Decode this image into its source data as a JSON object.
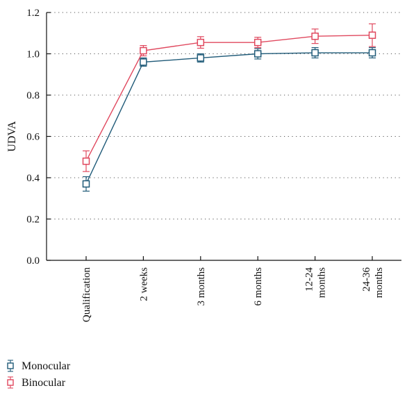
{
  "chart_data": {
    "type": "line",
    "title": "",
    "xlabel": "",
    "ylabel": "UDVA",
    "ylim": [
      0.0,
      1.2
    ],
    "yticks": [
      "0.0",
      "0.2",
      "0.4",
      "0.6",
      "0.8",
      "1.0",
      "1.2"
    ],
    "grid": "horizontal dotted",
    "legend_position": "bottom-left",
    "categories": [
      "Qualification",
      "2 weeks",
      "3 months",
      "6 months",
      [
        "12-24",
        "months"
      ],
      [
        "24-36",
        "months"
      ]
    ],
    "series": [
      {
        "name": "Monocular",
        "color": "#1f5a78",
        "values": [
          0.37,
          0.96,
          0.98,
          1.0,
          1.005,
          1.005
        ],
        "error": [
          0.035,
          0.02,
          0.02,
          0.025,
          0.025,
          0.025
        ]
      },
      {
        "name": "Binocular",
        "color": "#e0485e",
        "values": [
          0.48,
          1.015,
          1.055,
          1.055,
          1.085,
          1.09
        ],
        "error": [
          0.05,
          0.025,
          0.028,
          0.025,
          0.035,
          0.055
        ]
      }
    ]
  }
}
